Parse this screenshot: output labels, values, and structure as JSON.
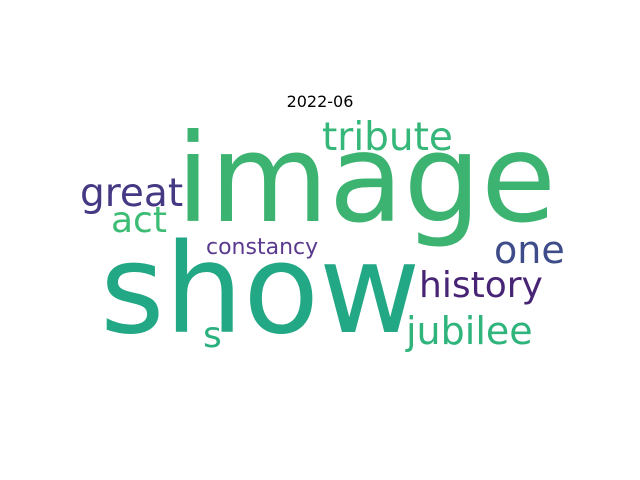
{
  "title": "2022-06",
  "words": {
    "image": {
      "text": "image",
      "color": "#3cb371"
    },
    "show": {
      "text": "show",
      "color": "#22a884"
    },
    "tribute": {
      "text": "tribute",
      "color": "#35b779"
    },
    "great": {
      "text": "great",
      "color": "#443983"
    },
    "act": {
      "text": "act",
      "color": "#3dbc74"
    },
    "one": {
      "text": "one",
      "color": "#3e4c8a"
    },
    "constancy": {
      "text": "constancy",
      "color": "#5a3a8e"
    },
    "history": {
      "text": "history",
      "color": "#482475"
    },
    "jubilee": {
      "text": "jubilee",
      "color": "#2fb47c"
    },
    "s": {
      "text": "s",
      "color": "#2ab07f"
    }
  }
}
